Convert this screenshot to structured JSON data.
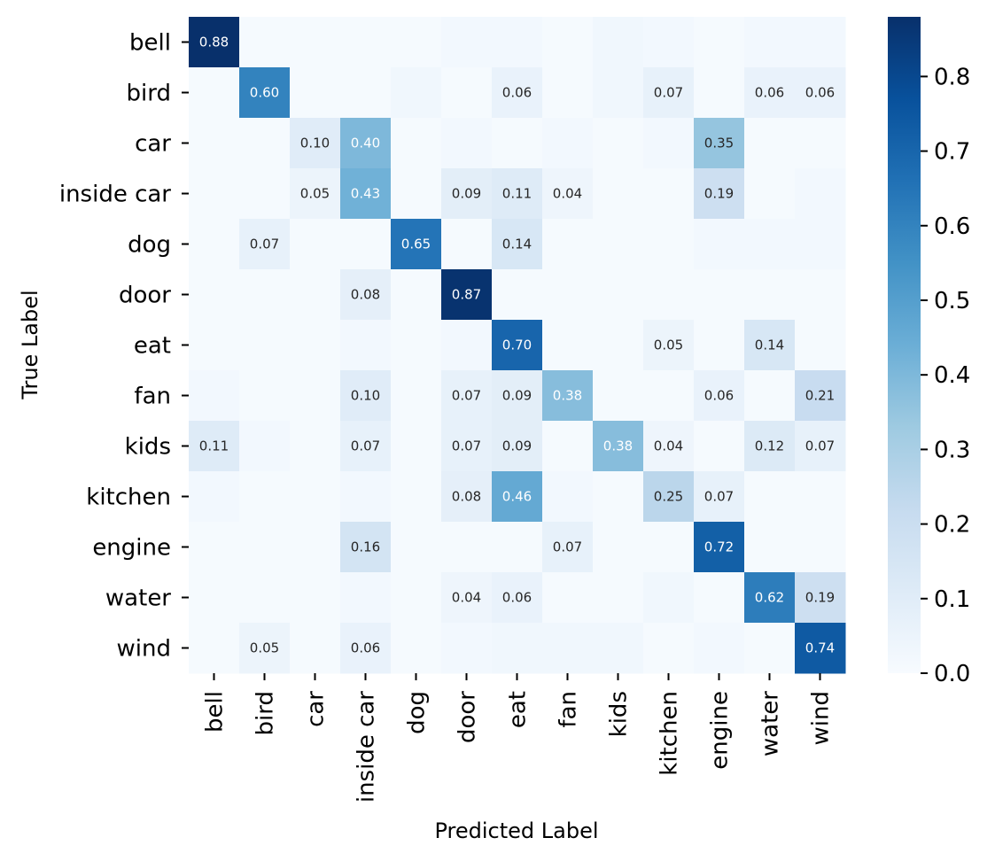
{
  "chart_data": {
    "type": "heatmap",
    "title": "",
    "xlabel": "Predicted Label",
    "ylabel": "True Label",
    "x_categories": [
      "bell",
      "bird",
      "car",
      "inside car",
      "dog",
      "door",
      "eat",
      "fan",
      "kids",
      "kitchen",
      "engine",
      "water",
      "wind"
    ],
    "y_categories": [
      "bell",
      "bird",
      "car",
      "inside car",
      "dog",
      "door",
      "eat",
      "fan",
      "kids",
      "kitchen",
      "engine",
      "water",
      "wind"
    ],
    "values": [
      [
        0.88,
        0.01,
        0.01,
        0.01,
        0.01,
        0.02,
        0.02,
        0.01,
        0.03,
        0.02,
        0.01,
        0.02,
        0.02
      ],
      [
        0.01,
        0.6,
        0.01,
        0.01,
        0.03,
        0.01,
        0.06,
        0.01,
        0.03,
        0.07,
        0.01,
        0.06,
        0.06
      ],
      [
        0.01,
        0.01,
        0.1,
        0.4,
        0.01,
        0.02,
        0.01,
        0.02,
        0.01,
        0.02,
        0.35,
        0.01,
        0.01
      ],
      [
        0.01,
        0.01,
        0.05,
        0.43,
        0.01,
        0.09,
        0.11,
        0.04,
        0.01,
        0.01,
        0.19,
        0.01,
        0.02
      ],
      [
        0.01,
        0.07,
        0.01,
        0.01,
        0.65,
        0.01,
        0.14,
        0.01,
        0.01,
        0.01,
        0.02,
        0.02,
        0.02
      ],
      [
        0.01,
        0.01,
        0.01,
        0.08,
        0.01,
        0.87,
        0.01,
        0.01,
        0.01,
        0.01,
        0.01,
        0.01,
        0.01
      ],
      [
        0.01,
        0.01,
        0.01,
        0.02,
        0.01,
        0.02,
        0.7,
        0.01,
        0.01,
        0.05,
        0.01,
        0.14,
        0.01
      ],
      [
        0.02,
        0.01,
        0.01,
        0.1,
        0.01,
        0.07,
        0.09,
        0.38,
        0.01,
        0.01,
        0.06,
        0.01,
        0.21
      ],
      [
        0.11,
        0.02,
        0.01,
        0.07,
        0.01,
        0.07,
        0.09,
        0.01,
        0.38,
        0.04,
        0.01,
        0.12,
        0.07
      ],
      [
        0.02,
        0.01,
        0.01,
        0.02,
        0.01,
        0.08,
        0.46,
        0.02,
        0.01,
        0.25,
        0.07,
        0.01,
        0.01
      ],
      [
        0.01,
        0.01,
        0.01,
        0.16,
        0.01,
        0.01,
        0.01,
        0.07,
        0.01,
        0.01,
        0.72,
        0.01,
        0.01
      ],
      [
        0.01,
        0.01,
        0.01,
        0.02,
        0.01,
        0.04,
        0.06,
        0.01,
        0.01,
        0.03,
        0.01,
        0.62,
        0.19
      ],
      [
        0.01,
        0.05,
        0.01,
        0.06,
        0.01,
        0.02,
        0.03,
        0.03,
        0.03,
        0.01,
        0.02,
        0.01,
        0.74
      ]
    ],
    "cell_labels": [
      [
        "0.88",
        "",
        "",
        "",
        "",
        "",
        "",
        "",
        "",
        "",
        "",
        "",
        ""
      ],
      [
        "",
        "0.60",
        "",
        "",
        "",
        "",
        "0.06",
        "",
        "",
        "0.07",
        "",
        "0.06",
        "0.06"
      ],
      [
        "",
        "",
        "0.10",
        "0.40",
        "",
        "",
        "",
        "",
        "",
        "",
        "0.35",
        "",
        ""
      ],
      [
        "",
        "",
        "0.05",
        "0.43",
        "",
        "0.09",
        "0.11",
        "0.04",
        "",
        "",
        "0.19",
        "",
        ""
      ],
      [
        "",
        "0.07",
        "",
        "",
        "0.65",
        "",
        "0.14",
        "",
        "",
        "",
        "",
        "",
        ""
      ],
      [
        "",
        "",
        "",
        "0.08",
        "",
        "0.87",
        "",
        "",
        "",
        "",
        "",
        "",
        ""
      ],
      [
        "",
        "",
        "",
        "",
        "",
        "",
        "0.70",
        "",
        "",
        "0.05",
        "",
        "0.14",
        ""
      ],
      [
        "",
        "",
        "",
        "0.10",
        "",
        "0.07",
        "0.09",
        "0.38",
        "",
        "",
        "0.06",
        "",
        "0.21"
      ],
      [
        "0.11",
        "",
        "",
        "0.07",
        "",
        "0.07",
        "0.09",
        "",
        "0.38",
        "0.04",
        "",
        "0.12",
        "0.07"
      ],
      [
        "",
        "",
        "",
        "",
        "",
        "0.08",
        "0.46",
        "",
        "",
        "0.25",
        "0.07",
        "",
        ""
      ],
      [
        "",
        "",
        "",
        "0.16",
        "",
        "",
        "",
        "0.07",
        "",
        "",
        "0.72",
        "",
        ""
      ],
      [
        "",
        "",
        "",
        "",
        "",
        "0.04",
        "0.06",
        "",
        "",
        "",
        "",
        "0.62",
        "0.19"
      ],
      [
        "",
        "0.05",
        "",
        "0.06",
        "",
        "",
        "",
        "",
        "",
        "",
        "",
        "",
        "0.74"
      ]
    ],
    "colorbar": {
      "range": [
        0.0,
        0.88
      ],
      "ticks": [
        0.0,
        0.1,
        0.2,
        0.3,
        0.4,
        0.5,
        0.6,
        0.7,
        0.8
      ],
      "tick_labels": [
        "0.0",
        "0.1",
        "0.2",
        "0.3",
        "0.4",
        "0.5",
        "0.6",
        "0.7",
        "0.8"
      ]
    },
    "colormap": [
      "#f7fbff",
      "#deebf7",
      "#c6dbef",
      "#9ecae1",
      "#6baed6",
      "#4292c6",
      "#2171b5",
      "#08519c",
      "#08306b"
    ],
    "grid": false,
    "legend": "colorbar-right"
  }
}
